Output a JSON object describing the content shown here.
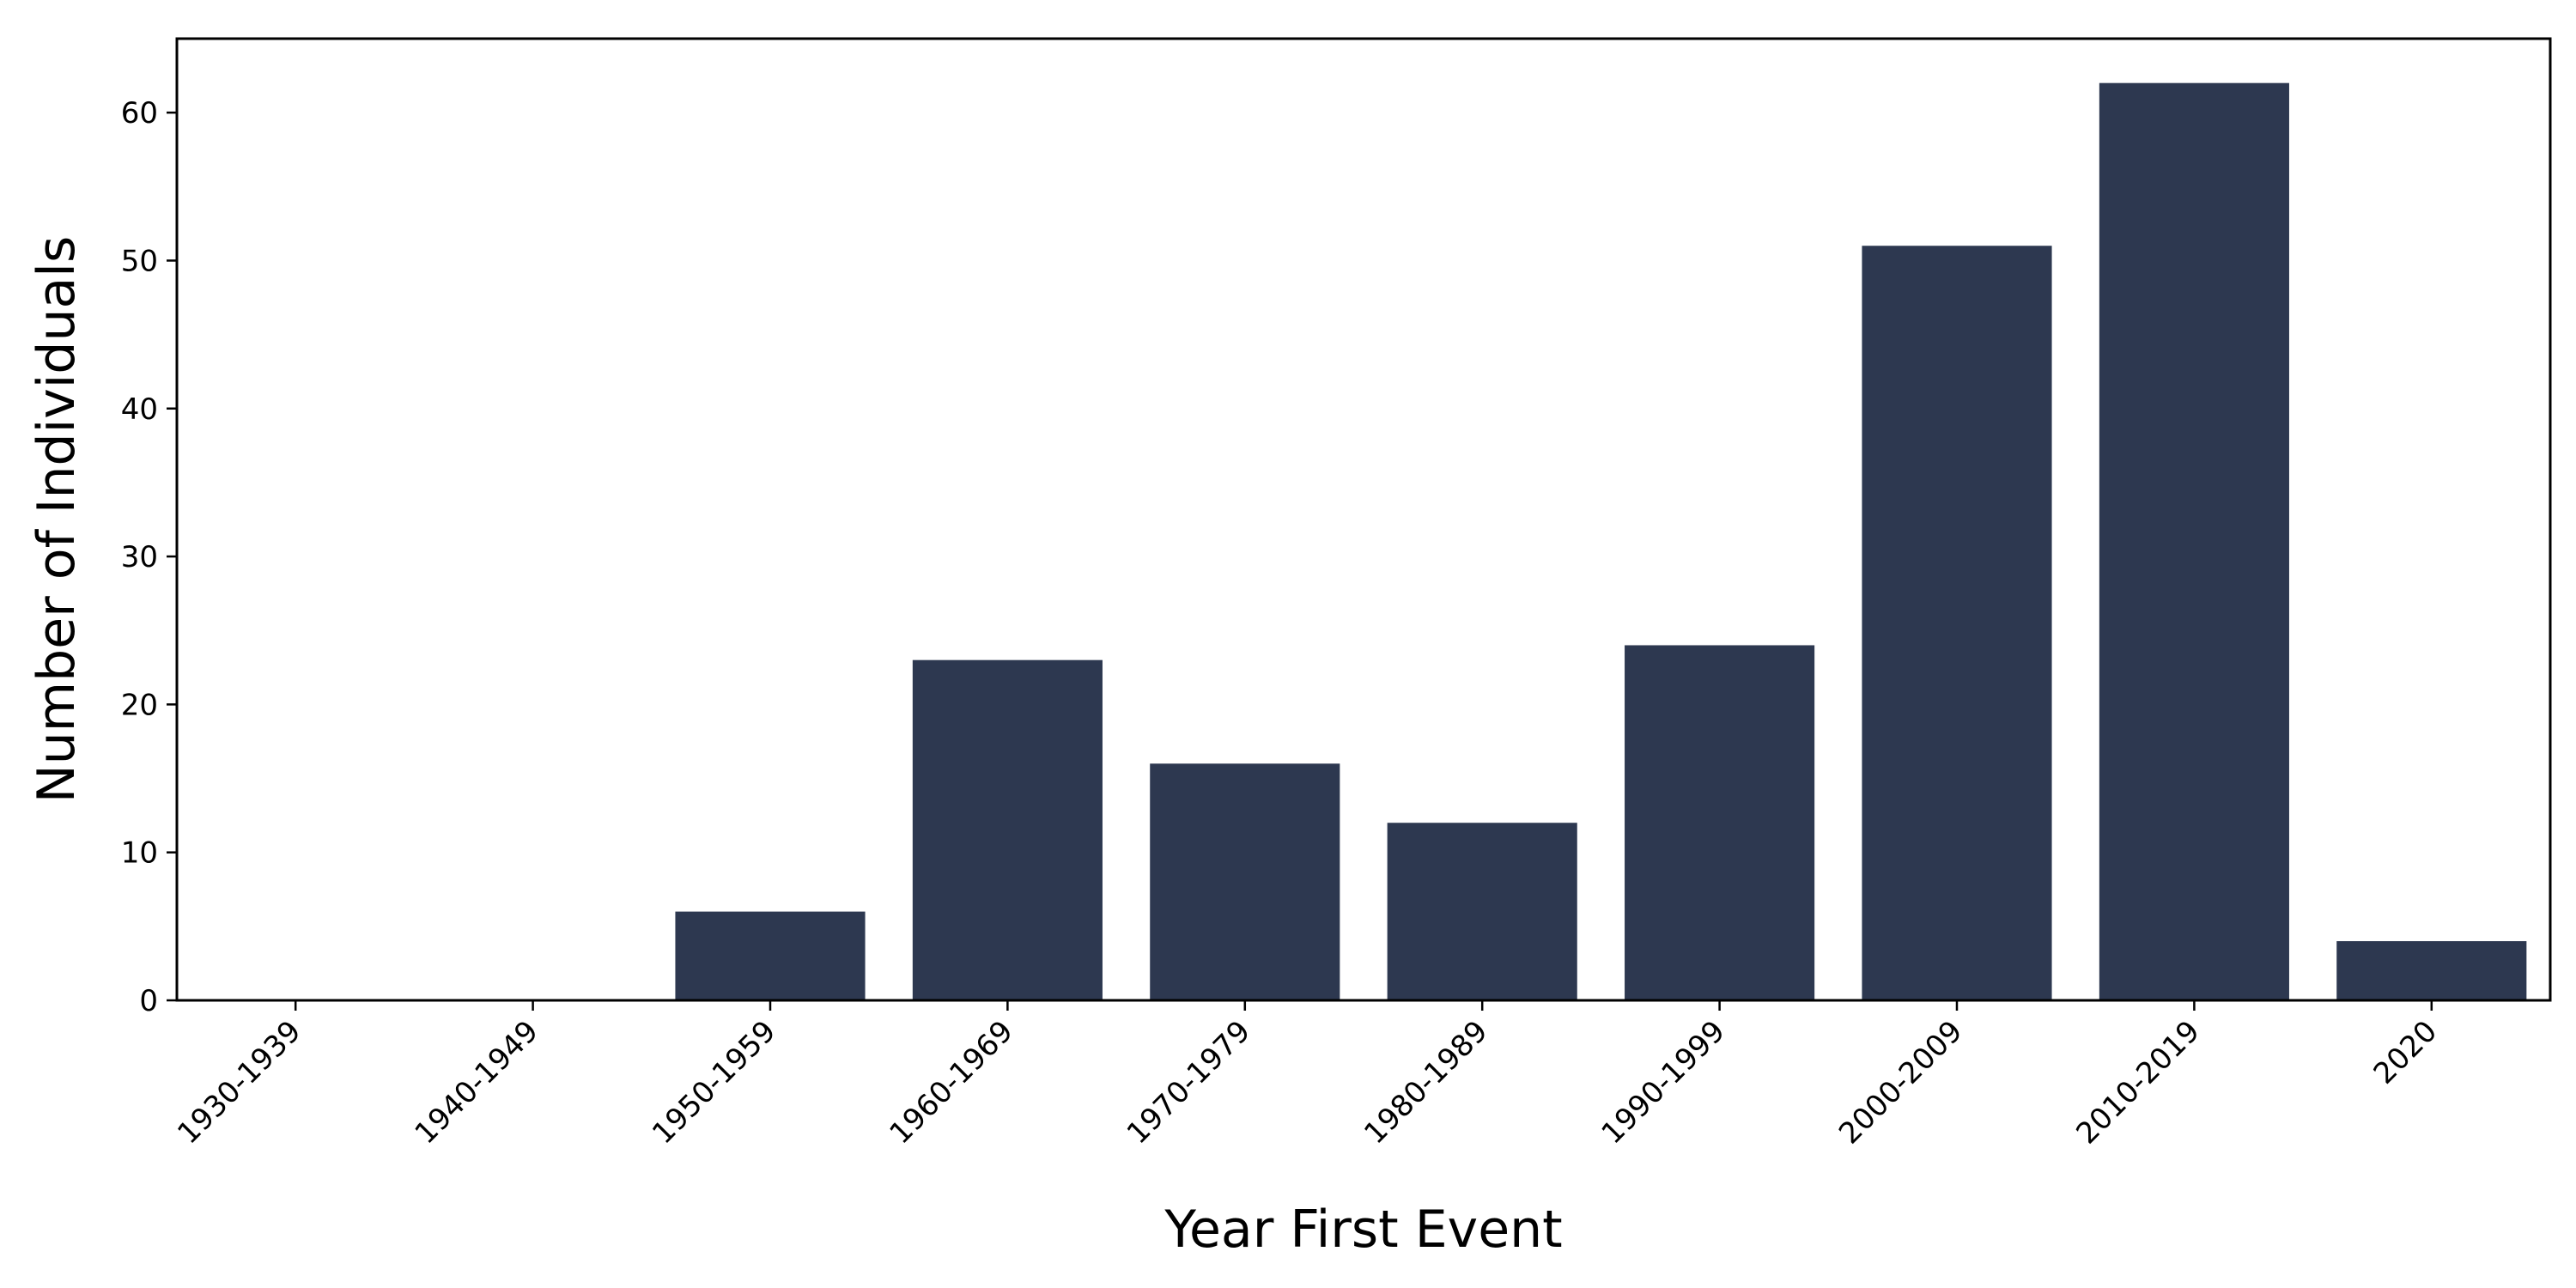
{
  "chart_data": {
    "type": "bar",
    "title": "",
    "xlabel": "Year First Event",
    "ylabel": "Number of Individuals",
    "categories": [
      "1930-1939",
      "1940-1949",
      "1950-1959",
      "1960-1969",
      "1970-1979",
      "1980-1989",
      "1990-1999",
      "2000-2009",
      "2010-2019",
      "2020"
    ],
    "values": [
      0,
      0,
      6,
      23,
      16,
      12,
      24,
      51,
      62,
      4
    ],
    "ylim": [
      0,
      65
    ],
    "yticks": [
      0,
      10,
      20,
      30,
      40,
      50,
      60
    ],
    "grid": false,
    "legend": "none",
    "bar_color": "#2d3850",
    "axis_color": "#000000"
  }
}
